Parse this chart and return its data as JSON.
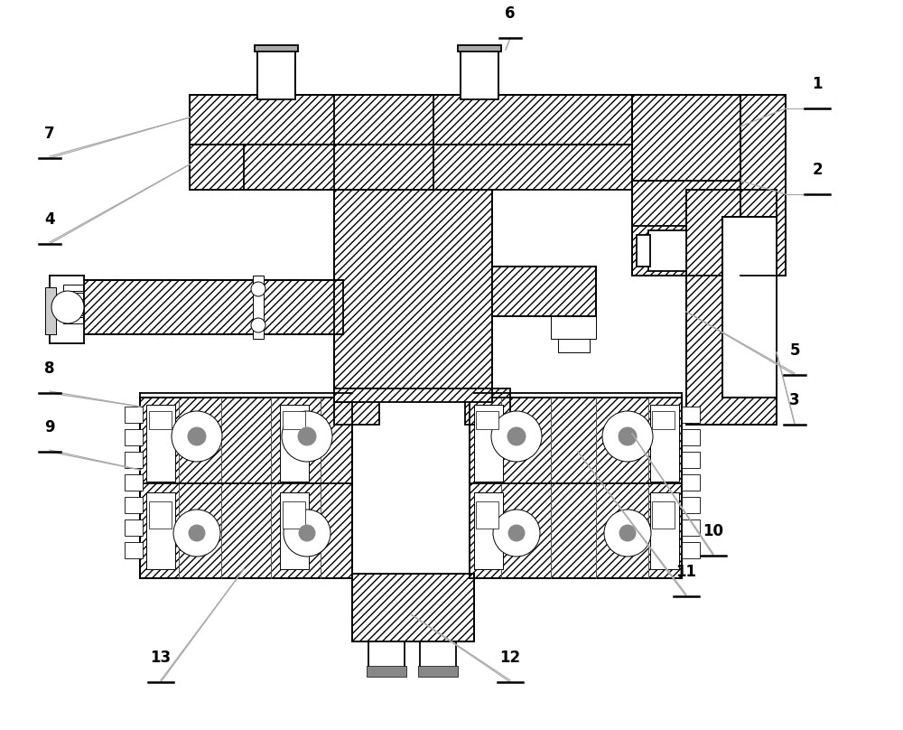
{
  "bg_color": "#ffffff",
  "lw": 1.3,
  "lw_t": 0.7,
  "figsize": [
    10.0,
    8.08
  ],
  "dpi": 100,
  "gray": "#aaaaaa",
  "black": "#000000"
}
